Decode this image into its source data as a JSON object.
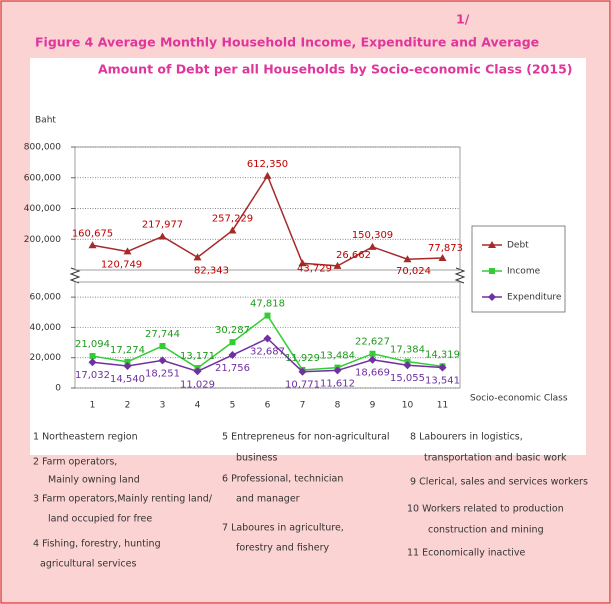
{
  "chart_data": {
    "type": "line",
    "footnote_mark": "1/",
    "title": [
      "Figure  4  Average Monthly Household Income, Expenditure and Average",
      "Amount of Debt  per all Households by Socio-economic Class (2015)"
    ],
    "ylabel": "Baht",
    "xlabel": "Socio-economic Class",
    "categories": [
      "1",
      "2",
      "3",
      "4",
      "5",
      "6",
      "7",
      "8",
      "9",
      "10",
      "11"
    ],
    "ylim": [
      0,
      70000
    ],
    "yticks": [
      0,
      {
        "value": 20000,
        "label": "20,000"
      },
      {
        "value": 40000,
        "label": "40,000"
      },
      {
        "value": 60000,
        "label": "60,000"
      }
    ],
    "y2lim": [
      0,
      800000
    ],
    "y2ticks": [
      {
        "value": 200000,
        "label": "200,000"
      },
      {
        "value": 400000,
        "label": "400,000"
      },
      {
        "value": 600000,
        "label": "600,000"
      },
      {
        "value": 800000,
        "label": "800,000"
      }
    ],
    "grid": true,
    "legend": "right",
    "series": [
      {
        "name": "Debt",
        "color": "#a52a2a",
        "label_color": "#c00000",
        "marker": "triangle",
        "axis": "y2",
        "values": [
          160675,
          120749,
          217977,
          82343,
          257229,
          612350,
          43729,
          26662,
          150309,
          70024,
          77873
        ],
        "value_labels": [
          "160,675",
          "120,749",
          "217,977",
          "82,343",
          "257,229",
          "612,350",
          "43,729",
          "26,662",
          "150,309",
          "70,024",
          "77,873"
        ]
      },
      {
        "name": "Income",
        "color": "#33cc33",
        "label_color": "#1f9a1f",
        "marker": "square",
        "values": [
          21094,
          17274,
          27744,
          13171,
          30287,
          47818,
          11929,
          13484,
          22627,
          17384,
          14319
        ],
        "value_labels": [
          "21,094",
          "17,274",
          "27,744",
          "13,171",
          "30,287",
          "47,818",
          "11,929",
          "13,484",
          "22,627",
          "17,384",
          "14,319"
        ]
      },
      {
        "name": "Expenditure",
        "color": "#7030a0",
        "label_color": "#7030a0",
        "marker": "diamond",
        "values": [
          17032,
          14540,
          18251,
          11029,
          21756,
          32687,
          10771,
          11612,
          18669,
          15055,
          13541
        ],
        "value_labels": [
          "17,032",
          "14,540",
          "18,251",
          "11,029",
          "21,756",
          "32,687",
          "10,771",
          "11,612",
          "18,669",
          "15,055",
          "13,541"
        ]
      }
    ],
    "notes": [
      "1 Northeastern     region",
      "2 Farm operators,",
      "Mainly owning land",
      "3 Farm operators,Mainly renting land/",
      "land occupied for free",
      "4 Fishing, forestry, hunting",
      "agricultural services",
      "5 Entrepreneus for non-agricultural",
      "business",
      "6 Professional, technician",
      "and manager",
      "7 Laboures in agriculture,",
      "forestry and fishery",
      "8 Labourers in logistics,",
      "transportation and basic work",
      "9 Clerical, sales and services workers",
      "10 Workers related to production",
      "construction and mining",
      "11 Economically inactive"
    ]
  }
}
